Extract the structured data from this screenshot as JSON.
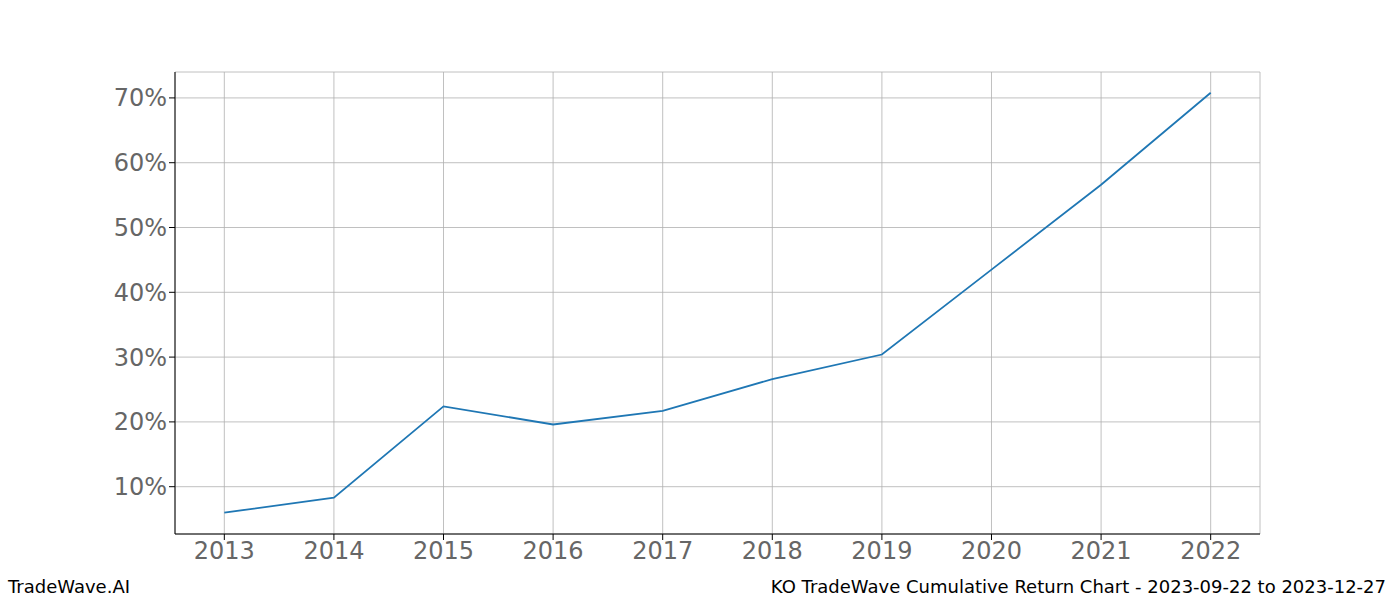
{
  "chart_data": {
    "type": "line",
    "title": "KO TradeWave Cumulative Return Chart - 2023-09-22 to 2023-12-27",
    "annotations": [
      "TradeWave.AI"
    ],
    "x": [
      2013,
      2014,
      2015,
      2016,
      2017,
      2018,
      2019,
      2020,
      2021,
      2022
    ],
    "values": [
      6.0,
      8.3,
      22.4,
      19.6,
      21.7,
      26.6,
      30.4,
      43.5,
      56.6,
      70.8
    ],
    "color": "#1f77b4",
    "xlim": [
      2012.55,
      2022.45
    ],
    "xticks": [
      2013,
      2014,
      2015,
      2016,
      2017,
      2018,
      2019,
      2020,
      2021,
      2022
    ],
    "ylim": [
      2.7,
      74.0
    ],
    "yticks": [
      {
        "value": 10,
        "label": "10%"
      },
      {
        "value": 20,
        "label": "20%"
      },
      {
        "value": 30,
        "label": "30%"
      },
      {
        "value": 40,
        "label": "40%"
      },
      {
        "value": 50,
        "label": "50%"
      },
      {
        "value": 60,
        "label": "60%"
      },
      {
        "value": 70,
        "label": "70%"
      }
    ],
    "grid": true
  }
}
